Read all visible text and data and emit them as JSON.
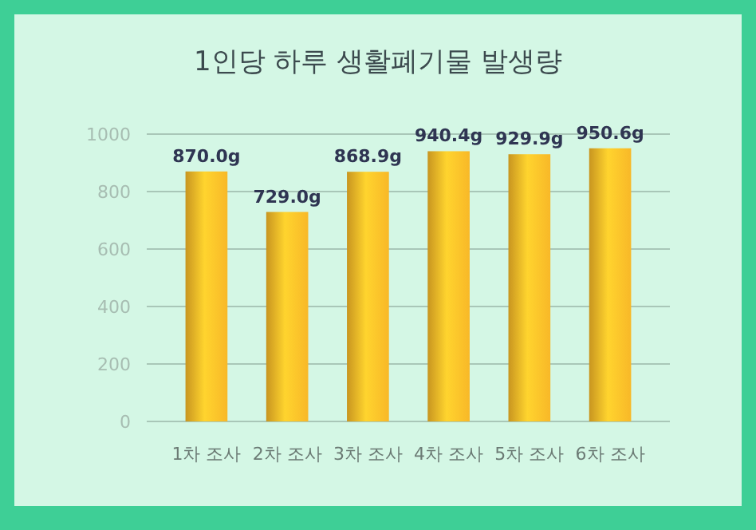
{
  "chart_data": {
    "type": "bar",
    "title": "1인당 하루 생활폐기물 발생량",
    "categories": [
      "1차 조사",
      "2차 조사",
      "3차 조사",
      "4차 조사",
      "5차 조사",
      "6차 조사"
    ],
    "values": [
      870.0,
      729.0,
      868.9,
      940.4,
      929.9,
      950.6
    ],
    "value_labels": [
      "870.0g",
      "729.0g",
      "868.9g",
      "940.4g",
      "929.9g",
      "950.6g"
    ],
    "color": "#f8b828",
    "ylim": [
      0,
      1000
    ],
    "yticks": [
      0,
      200,
      400,
      600,
      800,
      1000
    ],
    "grid": "y"
  }
}
